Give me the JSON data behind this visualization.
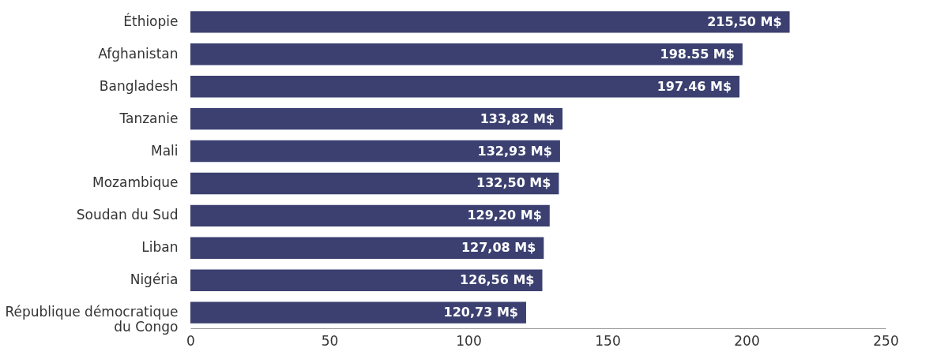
{
  "chart_data": {
    "type": "bar",
    "orientation": "horizontal",
    "categories": [
      "Éthiopie",
      "Afghanistan",
      "Bangladesh",
      "Tanzanie",
      "Mali",
      "Mozambique",
      "Soudan du Sud",
      "Liban",
      "Nigéria",
      "République démocratique du Congo"
    ],
    "values": [
      215.5,
      198.55,
      197.46,
      133.82,
      132.93,
      132.5,
      129.2,
      127.08,
      126.56,
      120.73
    ],
    "value_labels": [
      "215,50 M$",
      "198.55 M$",
      "197.46 M$",
      "133,82 M$",
      "132,93 M$",
      "132,50 M$",
      "129,20 M$",
      "127,08 M$",
      "126,56 M$",
      "120,73 M$"
    ],
    "color": "#3b4070",
    "xlim": [
      0,
      250
    ],
    "xticks": [
      0,
      50,
      100,
      150,
      200,
      250
    ],
    "grid": false
  }
}
